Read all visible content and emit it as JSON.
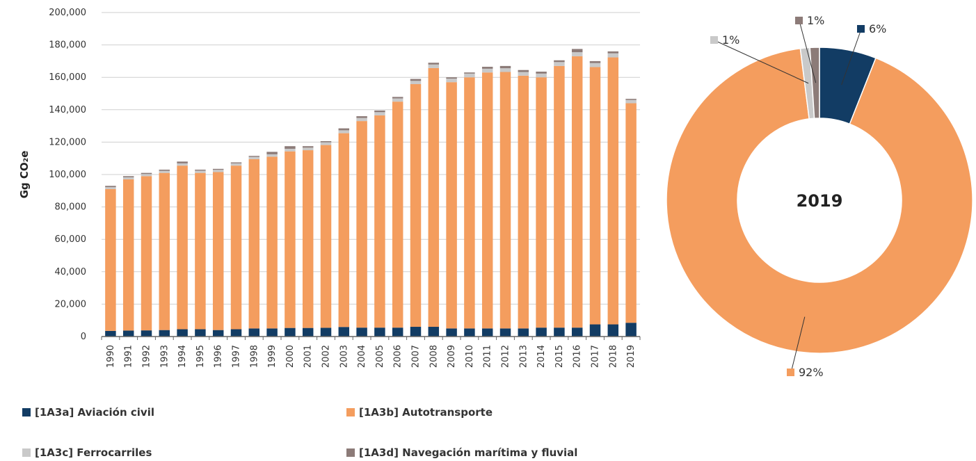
{
  "chart_data": [
    {
      "type": "bar",
      "stacked": true,
      "title": "",
      "xlabel": "",
      "ylabel": "Gg CO₂e",
      "ylim": [
        0,
        200000
      ],
      "yticks": [
        0,
        20000,
        40000,
        60000,
        80000,
        100000,
        120000,
        140000,
        160000,
        180000,
        200000
      ],
      "ytick_labels": [
        "0",
        "20,000",
        "40,000",
        "60,000",
        "80,000",
        "100,000",
        "120,000",
        "140,000",
        "160,000",
        "180,000",
        "200,000"
      ],
      "grid": true,
      "legend_position": "bottom",
      "categories": [
        "1990",
        "1991",
        "1992",
        "1993",
        "1994",
        "1995",
        "1996",
        "1997",
        "1998",
        "1999",
        "2000",
        "2001",
        "2002",
        "2003",
        "2004",
        "2005",
        "2006",
        "2007",
        "2008",
        "2009",
        "2010",
        "2011",
        "2012",
        "2013",
        "2014",
        "2015",
        "2016",
        "2017",
        "2018",
        "2019"
      ],
      "series": [
        {
          "name": "[1A3a] Aviación civil",
          "color": "#123c64",
          "values": [
            3500,
            3700,
            3800,
            4000,
            4500,
            4500,
            4000,
            4500,
            5000,
            5000,
            5300,
            5300,
            5400,
            5900,
            5500,
            5500,
            5500,
            6000,
            6000,
            5000,
            5000,
            5000,
            5000,
            5000,
            5500,
            5500,
            5500,
            7500,
            7500,
            8500
          ]
        },
        {
          "name": "[1A3b] Autotransporte",
          "color": "#f49d5e",
          "values": [
            87500,
            93300,
            95200,
            97000,
            101000,
            96500,
            97500,
            101000,
            104500,
            106000,
            109000,
            109700,
            112800,
            119600,
            127500,
            131000,
            139500,
            149800,
            159700,
            152000,
            155000,
            158000,
            158300,
            156000,
            154500,
            161500,
            167500,
            158800,
            164800,
            135500
          ]
        },
        {
          "name": "[1A3c] Ferrocarriles",
          "color": "#c9c9c9",
          "values": [
            1200,
            1300,
            1300,
            1300,
            1400,
            1400,
            1400,
            1400,
            1400,
            1500,
            1600,
            1600,
            1700,
            1800,
            1900,
            2000,
            2000,
            2000,
            2200,
            2200,
            2300,
            2300,
            2300,
            2300,
            2300,
            2400,
            2500,
            2500,
            2500,
            2000
          ]
        },
        {
          "name": "[1A3d] Navegación marítima y fluvial",
          "color": "#8c7b78",
          "values": [
            800,
            700,
            700,
            700,
            1100,
            600,
            600,
            600,
            600,
            1500,
            1600,
            900,
            700,
            1200,
            1100,
            1000,
            900,
            1200,
            1100,
            800,
            700,
            1200,
            1400,
            1200,
            1200,
            1100,
            2000,
            1200,
            1200,
            700
          ]
        }
      ]
    },
    {
      "type": "pie",
      "donut": true,
      "center_label": "2019",
      "slices": [
        {
          "label": "6%",
          "value": 6,
          "color": "#123c64"
        },
        {
          "label": "92%",
          "value": 92,
          "color": "#f49d5e"
        },
        {
          "label": "1%",
          "value": 1,
          "color": "#c9c9c9"
        },
        {
          "label": "1%",
          "value": 1,
          "color": "#8c7b78"
        }
      ]
    }
  ]
}
